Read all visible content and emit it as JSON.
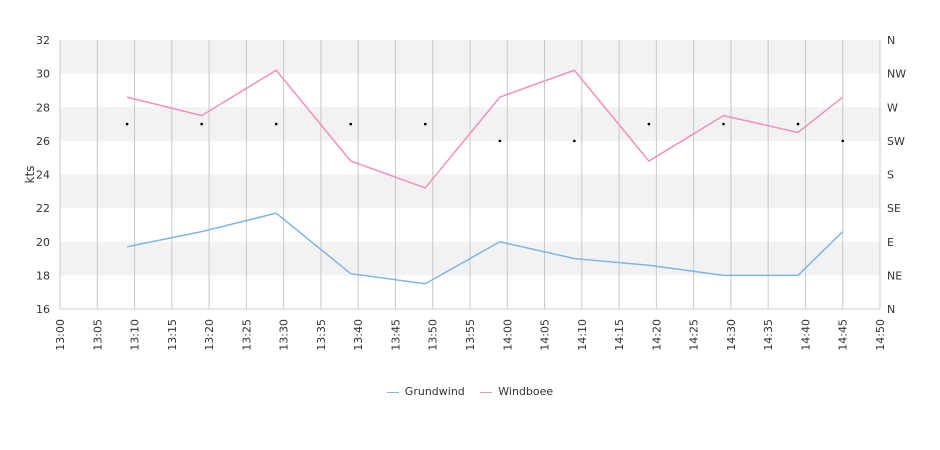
{
  "chart_data": {
    "type": "line",
    "ylabel": "kts",
    "ylim": [
      16,
      32
    ],
    "yticks": [
      "16",
      "18",
      "20",
      "22",
      "24",
      "26",
      "28",
      "30",
      "32"
    ],
    "y2ticks": [
      "N",
      "NE",
      "E",
      "SE",
      "S",
      "SW",
      "W",
      "NW",
      "N"
    ],
    "xticks": [
      "13:00",
      "13:05",
      "13:10",
      "13:15",
      "13:20",
      "13:25",
      "13:30",
      "13:35",
      "13:40",
      "13:45",
      "13:50",
      "13:55",
      "14:00",
      "14:05",
      "14:10",
      "14:15",
      "14:20",
      "14:25",
      "14:30",
      "14:35",
      "14:40",
      "14:45",
      "14:50"
    ],
    "grid": true,
    "legend_position": "bottom",
    "x": [
      "13:09",
      "13:19",
      "13:29",
      "13:39",
      "13:49",
      "13:59",
      "14:09",
      "14:19",
      "14:29",
      "14:39",
      "14:45"
    ],
    "series": [
      {
        "name": "Grundwind",
        "color": "#7cb5ec",
        "values": [
          19.7,
          20.6,
          21.7,
          18.1,
          17.5,
          20.0,
          19.0,
          18.6,
          18.0,
          18.0,
          20.6
        ]
      },
      {
        "name": "Windboee",
        "color": "#f28fbd",
        "values": [
          28.6,
          27.5,
          30.2,
          24.8,
          23.2,
          28.6,
          30.2,
          24.8,
          27.5,
          26.5,
          28.6
        ]
      }
    ],
    "direction": {
      "x": [
        "13:09",
        "13:19",
        "13:29",
        "13:39",
        "13:49",
        "13:59",
        "14:09",
        "14:19",
        "14:29",
        "14:39",
        "14:45"
      ],
      "values": [
        "WSW",
        "WSW",
        "WSW",
        "WSW",
        "WSW",
        "SW",
        "SW",
        "WSW",
        "WSW",
        "WSW",
        "SW"
      ]
    },
    "colors": {
      "band": "#f2f2f2",
      "gridline": "#c8c8c8",
      "axis": "#cccccc",
      "direction_marker": "#000000"
    }
  }
}
